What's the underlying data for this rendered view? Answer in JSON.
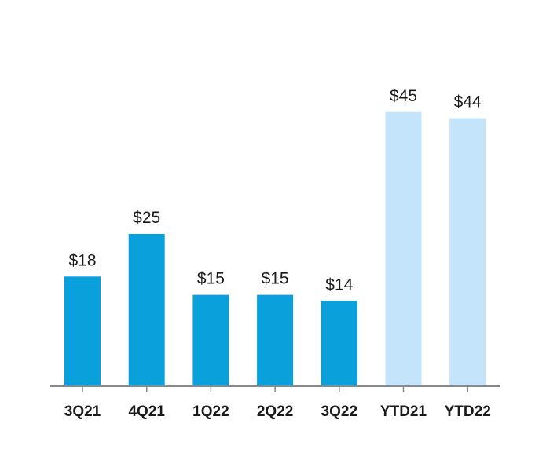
{
  "chart_data": {
    "type": "bar",
    "categories": [
      "3Q21",
      "4Q21",
      "1Q22",
      "2Q22",
      "3Q22",
      "YTD21",
      "YTD22"
    ],
    "values": [
      18,
      25,
      15,
      15,
      14,
      45,
      44
    ],
    "value_labels": [
      "$18",
      "$25",
      "$15",
      "$15",
      "$14",
      "$45",
      "$44"
    ],
    "bar_colors": [
      "#0aa0dc",
      "#0aa0dc",
      "#0aa0dc",
      "#0aa0dc",
      "#0aa0dc",
      "#c4e4fb",
      "#c4e4fb"
    ],
    "axis_color": "#888888",
    "ylim": [
      0,
      45
    ],
    "grid": false,
    "legend": "none"
  }
}
